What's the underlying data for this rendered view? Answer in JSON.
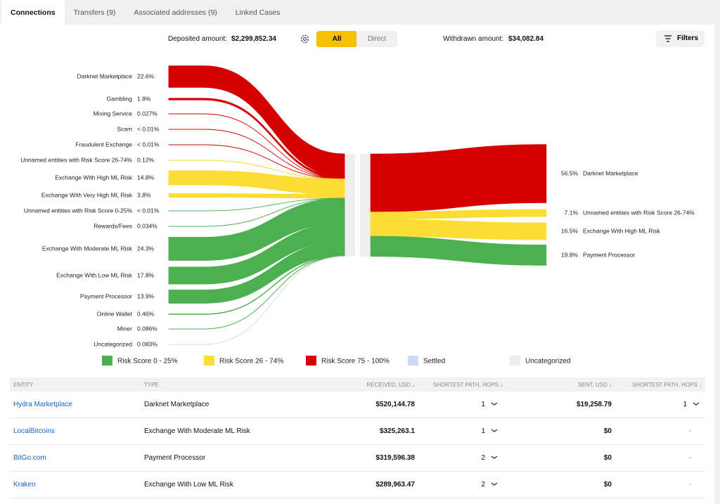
{
  "tabs": [
    "Connections",
    "Transfers (9)",
    "Associated addresses (9)",
    "Linked Cases"
  ],
  "toolbar": {
    "deposited_label": "Deposited amount:",
    "deposited_value": "$2,299,852.34",
    "toggle": [
      "All",
      "Direct"
    ],
    "withdrawn_label": "Withdrawn amount:",
    "withdrawn_value": "$34,082.84",
    "filters": "Filters"
  },
  "chart_data": {
    "type": "sankey",
    "sources": {
      "names": [
        "Darknet Marketplace",
        "Gambling",
        "Mixing Service",
        "Scam",
        "Fraudulent Exchange",
        "Unnamed entities with Risk Score 26-74%",
        "Exchange With High ML Risk",
        "Exchange With Very High ML Risk",
        "Unnamed entities with Risk Score 0-25%",
        "Rewards/Fees",
        "Exchange With Moderate ML Risk",
        "Exchange With Low ML Risk",
        "Payment Processor",
        "Online Wallet",
        "Miner",
        "Uncategorized"
      ],
      "values": [
        22.6,
        1.8,
        0.027,
        0.005,
        0.005,
        0.12,
        14.8,
        3.8,
        0.005,
        0.034,
        24.3,
        17.8,
        13.9,
        0.46,
        0.086,
        0.083
      ],
      "value_labels": [
        "22.6%",
        "1.8%",
        "0.027%",
        "< 0.01%",
        "< 0.01%",
        "0.12%",
        "14.8%",
        "3.8%",
        "< 0.01%",
        "0.034%",
        "24.3%",
        "17.8%",
        "13.9%",
        "0.46%",
        "0.086%",
        "0.083%"
      ],
      "colors": [
        "#d50000",
        "#d50000",
        "#d50000",
        "#d50000",
        "#d50000",
        "#fddc35",
        "#fddc35",
        "#fddc35",
        "#4caf50",
        "#4caf50",
        "#4caf50",
        "#4caf50",
        "#4caf50",
        "#4caf50",
        "#4caf50",
        "#dddddd"
      ]
    },
    "targets": {
      "names": [
        "Darknet Marketplace",
        "Unnamed entities with Risk Score 26-74%",
        "Exchange With High ML Risk",
        "Payment Processor"
      ],
      "values": [
        56.5,
        7.1,
        16.5,
        19.8
      ],
      "value_labels": [
        "56.5%",
        "7.1%",
        "16.5%",
        "19.8%"
      ],
      "colors": [
        "#d50000",
        "#fddc35",
        "#fddc35",
        "#4caf50"
      ]
    },
    "legend": [
      {
        "name": "Risk Score 0 - 25%",
        "color": "#4caf50"
      },
      {
        "name": "Risk Score 26 - 74%",
        "color": "#fddc35"
      },
      {
        "name": "Risk Score 75 - 100%",
        "color": "#d50000"
      },
      {
        "name": "Settled",
        "color": "#8fb0e8",
        "pattern": "hatch"
      },
      {
        "name": "Uncategorized",
        "color": "#eeeeee"
      }
    ]
  },
  "table": {
    "headers": [
      "ENTITY",
      "TYPE",
      "RECEIVED, USD ↓",
      "SHORTEST PATH, HOPS ↓",
      "SENT, USD ↓",
      "SHORTEST PATH, HOPS ↓"
    ],
    "rows": [
      [
        "Hydra Marketplace",
        "Darknet Marketplace",
        "$520,144.78",
        1,
        "$19,258.79",
        1
      ],
      [
        "LocalBitcoins",
        "Exchange With Moderate ML Risk",
        "$325,263.1",
        1,
        "$0",
        "-"
      ],
      [
        "BitGo.com",
        "Payment Processor",
        "$319,596.38",
        2,
        "$0",
        "-"
      ],
      [
        "Kraken",
        "Exchange With Low ML Risk",
        "$289,963.47",
        2,
        "$0",
        "-"
      ]
    ]
  }
}
